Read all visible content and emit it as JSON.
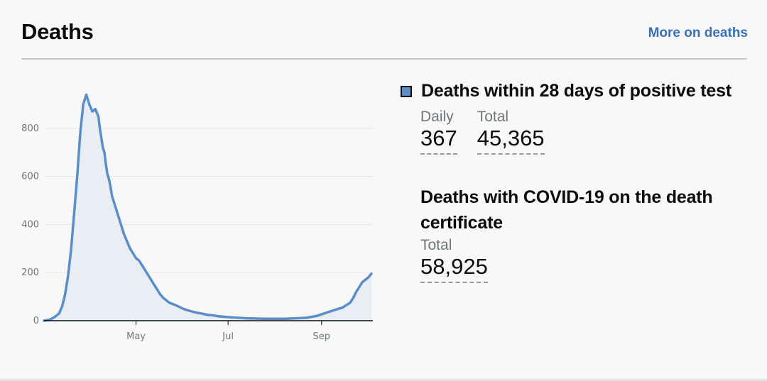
{
  "header": {
    "title": "Deaths",
    "more_link": "More on deaths"
  },
  "metrics": {
    "within28": {
      "heading": "Deaths within 28 days of positive test",
      "daily_label": "Daily",
      "daily_value": "367",
      "total_label": "Total",
      "total_value": "45,365"
    },
    "certificate": {
      "heading": "Deaths with COVID-19 on the death certificate",
      "total_label": "Total",
      "total_value": "58,925"
    }
  },
  "colors": {
    "line": "#5b8ec9",
    "fill": "#e9eef5",
    "link": "#3a70b5"
  },
  "chart_data": {
    "type": "area",
    "title": "",
    "xlabel": "",
    "ylabel": "",
    "ylim": [
      0,
      950
    ],
    "xlim": [
      "2020-03-01",
      "2020-10-05"
    ],
    "grid": true,
    "y_ticks": [
      {
        "value": 0,
        "label": "0"
      },
      {
        "value": 200,
        "label": "200"
      },
      {
        "value": 400,
        "label": "400"
      },
      {
        "value": 600,
        "label": "600"
      },
      {
        "value": 800,
        "label": "800"
      }
    ],
    "x_ticks": [
      {
        "value": "2020-05-01",
        "label": "May"
      },
      {
        "value": "2020-07-01",
        "label": "Jul"
      },
      {
        "value": "2020-09-01",
        "label": "Sep"
      }
    ],
    "series": [
      {
        "name": "",
        "x": [
          "2020-03-01",
          "2020-03-05",
          "2020-03-08",
          "2020-03-11",
          "2020-03-13",
          "2020-03-15",
          "2020-03-17",
          "2020-03-19",
          "2020-03-21",
          "2020-03-23",
          "2020-03-25",
          "2020-03-27",
          "2020-03-29",
          "2020-03-31",
          "2020-04-02",
          "2020-04-04",
          "2020-04-06",
          "2020-04-07",
          "2020-04-08",
          "2020-04-09",
          "2020-04-10",
          "2020-04-11",
          "2020-04-12",
          "2020-04-13",
          "2020-04-14",
          "2020-04-15",
          "2020-04-17",
          "2020-04-19",
          "2020-04-21",
          "2020-04-23",
          "2020-04-25",
          "2020-04-27",
          "2020-04-29",
          "2020-05-01",
          "2020-05-03",
          "2020-05-05",
          "2020-05-07",
          "2020-05-09",
          "2020-05-11",
          "2020-05-13",
          "2020-05-15",
          "2020-05-17",
          "2020-05-19",
          "2020-05-21",
          "2020-05-23",
          "2020-05-25",
          "2020-05-27",
          "2020-05-29",
          "2020-06-01",
          "2020-06-05",
          "2020-06-09",
          "2020-06-13",
          "2020-06-17",
          "2020-06-21",
          "2020-06-25",
          "2020-06-29",
          "2020-07-03",
          "2020-07-08",
          "2020-07-13",
          "2020-07-18",
          "2020-07-25",
          "2020-08-01",
          "2020-08-08",
          "2020-08-15",
          "2020-08-22",
          "2020-08-29",
          "2020-09-05",
          "2020-09-10",
          "2020-09-15",
          "2020-09-20",
          "2020-09-22",
          "2020-09-24",
          "2020-09-26",
          "2020-09-28",
          "2020-09-30",
          "2020-10-02",
          "2020-10-04"
        ],
        "values": [
          0,
          5,
          15,
          30,
          60,
          110,
          190,
          300,
          450,
          600,
          780,
          900,
          940,
          900,
          870,
          880,
          850,
          800,
          760,
          720,
          700,
          650,
          610,
          590,
          560,
          520,
          480,
          440,
          400,
          360,
          330,
          300,
          280,
          260,
          250,
          230,
          210,
          190,
          170,
          150,
          130,
          110,
          95,
          85,
          75,
          70,
          65,
          60,
          50,
          42,
          35,
          30,
          25,
          22,
          18,
          16,
          14,
          12,
          10,
          9,
          8,
          8,
          8,
          10,
          12,
          20,
          35,
          45,
          55,
          75,
          95,
          120,
          140,
          160,
          170,
          180,
          195
        ]
      }
    ]
  }
}
